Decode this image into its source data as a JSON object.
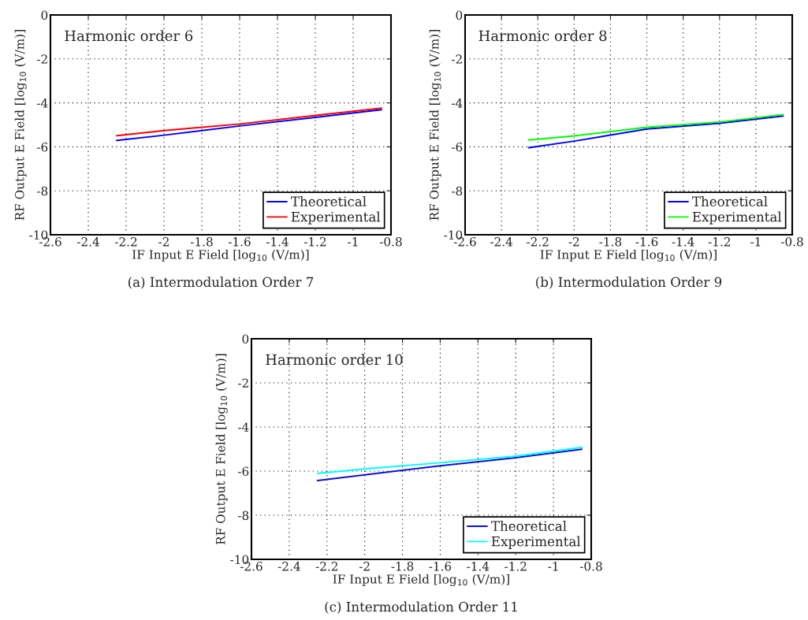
{
  "chart_data": [
    {
      "type": "line",
      "xlabel": "IF Input E Field [log$_{10}$ (V/m)]",
      "ylabel": "RF Output E Field [log$_{10}$ (V/m)]",
      "annotations": [
        "Harmonic order 6",
        "(a) Intermodulation Order 7"
      ],
      "xlim": [
        -2.6,
        -0.8
      ],
      "xticks": [
        -2.6,
        -2.4,
        -2.2,
        -2,
        -1.8,
        -1.6,
        -1.4,
        -1.2,
        -1,
        -0.8
      ],
      "ylim": [
        -10,
        0
      ],
      "yticks": [
        -10,
        -8,
        -6,
        -4,
        -2,
        0
      ],
      "grid": true,
      "legend": "bottom right",
      "line_style": "solid",
      "series": [
        {
          "name": "Theoretical",
          "color": "#0000ff",
          "x": [
            -2.25,
            -2.0,
            -1.6,
            -1.2,
            -0.85
          ],
          "values": [
            -5.71,
            -5.47,
            -5.05,
            -4.66,
            -4.31
          ]
        },
        {
          "name": "Experimental",
          "color": "#ff0000",
          "x": [
            -2.25,
            -2.0,
            -1.6,
            -1.2,
            -0.85
          ],
          "values": [
            -5.49,
            -5.26,
            -4.96,
            -4.57,
            -4.24
          ]
        }
      ]
    },
    {
      "type": "line",
      "xlabel": "IF Input E Field [log$_{10}$ (V/m)]",
      "ylabel": "RF Output E Field [log$_{10}$ (V/m)]",
      "annotations": [
        "Harmonic order 8",
        "(b) Intermodulation Order 9"
      ],
      "xlim": [
        -2.6,
        -0.8
      ],
      "xticks": [
        -2.6,
        -2.4,
        -2.2,
        -2,
        -1.8,
        -1.6,
        -1.4,
        -1.2,
        -1,
        -0.8
      ],
      "ylim": [
        -10,
        0
      ],
      "yticks": [
        -10,
        -8,
        -6,
        -4,
        -2,
        0
      ],
      "grid": true,
      "legend": "bottom right",
      "line_style": "solid",
      "series": [
        {
          "name": "Theoretical",
          "color": "#0000ff",
          "x": [
            -2.25,
            -2.0,
            -1.6,
            -1.2,
            -0.85
          ],
          "values": [
            -6.04,
            -5.74,
            -5.19,
            -4.93,
            -4.6
          ]
        },
        {
          "name": "Experimental",
          "color": "#00ff00",
          "x": [
            -2.25,
            -2.0,
            -1.6,
            -1.2,
            -0.85
          ],
          "values": [
            -5.69,
            -5.5,
            -5.11,
            -4.87,
            -4.53
          ]
        }
      ]
    },
    {
      "type": "line",
      "xlabel": "IF Input E Field [log$_{10}$ (V/m)]",
      "ylabel": "RF Output E Field [log$_{10}$ (V/m)]",
      "annotations": [
        "Harmonic order 10",
        "(c) Intermodulation Order 11"
      ],
      "xlim": [
        -2.6,
        -0.8
      ],
      "xticks": [
        -2.6,
        -2.4,
        -2.2,
        -2,
        -1.8,
        -1.6,
        -1.4,
        -1.2,
        -1,
        -0.8
      ],
      "ylim": [
        -10,
        0
      ],
      "yticks": [
        -10,
        -8,
        -6,
        -4,
        -2,
        0
      ],
      "grid": true,
      "legend": "bottom right",
      "line_style": "solid",
      "series": [
        {
          "name": "Theoretical",
          "color": "#1010d0",
          "x": [
            -2.25,
            -2.0,
            -1.6,
            -1.2,
            -0.85
          ],
          "values": [
            -6.43,
            -6.17,
            -5.76,
            -5.39,
            -5.01
          ]
        },
        {
          "name": "Experimental",
          "color": "#00ffff",
          "x": [
            -2.25,
            -2.0,
            -1.6,
            -1.2,
            -0.85
          ],
          "values": [
            -6.11,
            -5.9,
            -5.62,
            -5.32,
            -4.92
          ]
        }
      ]
    }
  ]
}
